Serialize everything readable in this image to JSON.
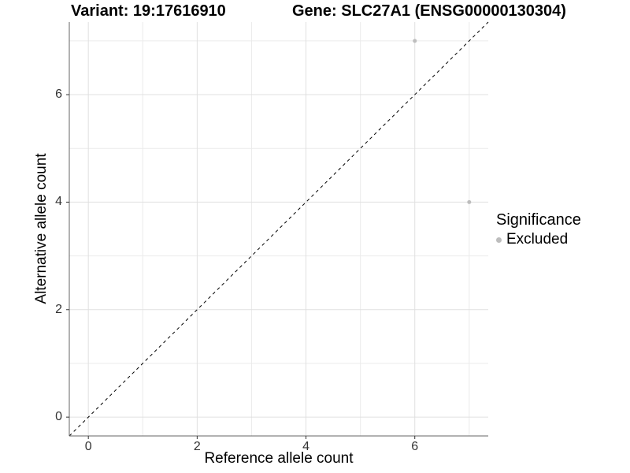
{
  "chart_data": {
    "type": "scatter",
    "title_left": "Variant: 19:17616910",
    "title_right": "Gene: SLC27A1 (ENSG00000130304)",
    "xlabel": "Reference allele count",
    "ylabel": "Alternative allele count",
    "xlim": [
      -0.35,
      7.35
    ],
    "ylim": [
      -0.35,
      7.35
    ],
    "x_ticks": [
      0,
      2,
      4,
      6
    ],
    "y_ticks": [
      0,
      2,
      4,
      6
    ],
    "minor_gridlines_x": [
      1,
      3,
      5,
      7
    ],
    "minor_gridlines_y": [
      1,
      3,
      5,
      7
    ],
    "grid": true,
    "legend": {
      "position": "right",
      "title": "Significance",
      "entries": [
        {
          "label": "Excluded",
          "color": "#bdbdbd"
        }
      ]
    },
    "identity_line": {
      "style": "dashed",
      "color": "#000000",
      "slope": 1,
      "intercept": 0
    },
    "series": [
      {
        "name": "Excluded",
        "color": "#bdbdbd",
        "points": [
          [
            6,
            7
          ],
          [
            7,
            4
          ]
        ]
      }
    ],
    "colors": {
      "background": "#ffffff",
      "grid_major": "#e0e0e0",
      "grid_minor": "#ebebeb",
      "axis_line": "#666666",
      "tick_mark": "#333333",
      "tick_label": "#333333"
    }
  }
}
